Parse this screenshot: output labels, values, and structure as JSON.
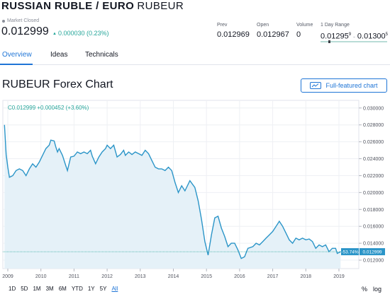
{
  "header": {
    "name": "RUSSIAN RUBLE / EURO",
    "ticker": "RUBEUR",
    "status": "Market Closed",
    "price": "0.012999",
    "change": "0.000030 (0.23%)",
    "change_color": "#26a69a"
  },
  "stats": {
    "prev": {
      "label": "Prev",
      "value": "0.012969"
    },
    "open": {
      "label": "Open",
      "value": "0.012967"
    },
    "volume": {
      "label": "Volume",
      "value": "0"
    },
    "range": {
      "label": "1 Day Range",
      "low": "0.01295",
      "low_sup": "9",
      "high": "0.01300",
      "high_sup": "5",
      "position": 0.12
    }
  },
  "tabs": [
    {
      "label": "Overview",
      "active": true
    },
    {
      "label": "Ideas",
      "active": false
    },
    {
      "label": "Technicals",
      "active": false
    }
  ],
  "chart_section": {
    "title": "RUBEUR Forex Chart",
    "full_button": "Full-featured chart",
    "legend": "C0.012999 +0.000452 (+3.60%)",
    "price_tag_pct": "-53.74%",
    "price_tag_val": "0.012999"
  },
  "periods": [
    {
      "label": "1D",
      "active": false
    },
    {
      "label": "5D",
      "active": false
    },
    {
      "label": "1M",
      "active": false
    },
    {
      "label": "3M",
      "active": false
    },
    {
      "label": "6M",
      "active": false
    },
    {
      "label": "YTD",
      "active": false
    },
    {
      "label": "1Y",
      "active": false
    },
    {
      "label": "5Y",
      "active": false
    },
    {
      "label": "All",
      "active": true
    }
  ],
  "scale": {
    "percent": "%",
    "log": "log"
  },
  "colors": {
    "accent": "#1f75d6",
    "line": "#2b95c8",
    "fill": "#e5f1f8"
  },
  "chart_data": {
    "type": "area",
    "xlabel": "",
    "ylabel": "",
    "x_ticks": [
      "2009",
      "2010",
      "2011",
      "2012",
      "2013",
      "2014",
      "2015",
      "2016",
      "2017",
      "2018",
      "2019"
    ],
    "y_ticks": [
      "0.012000",
      "0.014000",
      "0.016000",
      "0.018000",
      "0.020000",
      "0.022000",
      "0.024000",
      "0.026000",
      "0.028000",
      "0.030000"
    ],
    "xlim": [
      2008.85,
      2019.6
    ],
    "ylim": [
      0.011,
      0.0304
    ],
    "grid": true,
    "series": [
      {
        "values": [
          [
            2008.9,
            0.028
          ],
          [
            2008.95,
            0.0245
          ],
          [
            2009.0,
            0.023
          ],
          [
            2009.05,
            0.0218
          ],
          [
            2009.15,
            0.022
          ],
          [
            2009.25,
            0.0226
          ],
          [
            2009.35,
            0.0228
          ],
          [
            2009.45,
            0.0226
          ],
          [
            2009.55,
            0.022
          ],
          [
            2009.65,
            0.0228
          ],
          [
            2009.75,
            0.0234
          ],
          [
            2009.85,
            0.023
          ],
          [
            2009.95,
            0.0236
          ],
          [
            2010.05,
            0.0244
          ],
          [
            2010.15,
            0.0252
          ],
          [
            2010.25,
            0.0256
          ],
          [
            2010.3,
            0.0262
          ],
          [
            2010.4,
            0.0261
          ],
          [
            2010.45,
            0.0254
          ],
          [
            2010.5,
            0.0248
          ],
          [
            2010.55,
            0.0252
          ],
          [
            2010.65,
            0.0244
          ],
          [
            2010.75,
            0.0232
          ],
          [
            2010.8,
            0.0226
          ],
          [
            2010.9,
            0.0242
          ],
          [
            2011.0,
            0.0243
          ],
          [
            2011.1,
            0.0248
          ],
          [
            2011.2,
            0.0246
          ],
          [
            2011.3,
            0.0248
          ],
          [
            2011.4,
            0.0246
          ],
          [
            2011.5,
            0.025
          ],
          [
            2011.55,
            0.0243
          ],
          [
            2011.65,
            0.0234
          ],
          [
            2011.75,
            0.0242
          ],
          [
            2011.85,
            0.0248
          ],
          [
            2011.95,
            0.0252
          ],
          [
            2012.0,
            0.0256
          ],
          [
            2012.1,
            0.0252
          ],
          [
            2012.2,
            0.0256
          ],
          [
            2012.3,
            0.0242
          ],
          [
            2012.4,
            0.0245
          ],
          [
            2012.5,
            0.025
          ],
          [
            2012.55,
            0.0244
          ],
          [
            2012.65,
            0.0248
          ],
          [
            2012.75,
            0.0245
          ],
          [
            2012.85,
            0.0248
          ],
          [
            2012.95,
            0.0246
          ],
          [
            2013.05,
            0.0244
          ],
          [
            2013.15,
            0.025
          ],
          [
            2013.25,
            0.0246
          ],
          [
            2013.35,
            0.0238
          ],
          [
            2013.45,
            0.023
          ],
          [
            2013.55,
            0.0228
          ],
          [
            2013.65,
            0.0228
          ],
          [
            2013.75,
            0.0226
          ],
          [
            2013.85,
            0.023
          ],
          [
            2013.95,
            0.0226
          ],
          [
            2014.05,
            0.0212
          ],
          [
            2014.15,
            0.02
          ],
          [
            2014.25,
            0.0208
          ],
          [
            2014.35,
            0.0202
          ],
          [
            2014.5,
            0.0214
          ],
          [
            2014.65,
            0.0206
          ],
          [
            2014.75,
            0.019
          ],
          [
            2014.85,
            0.0168
          ],
          [
            2014.95,
            0.0142
          ],
          [
            2015.05,
            0.0126
          ],
          [
            2015.15,
            0.015
          ],
          [
            2015.25,
            0.017
          ],
          [
            2015.35,
            0.0172
          ],
          [
            2015.45,
            0.0158
          ],
          [
            2015.55,
            0.0148
          ],
          [
            2015.65,
            0.0136
          ],
          [
            2015.75,
            0.014
          ],
          [
            2015.85,
            0.014
          ],
          [
            2015.95,
            0.0132
          ],
          [
            2016.05,
            0.0122
          ],
          [
            2016.15,
            0.0124
          ],
          [
            2016.25,
            0.0134
          ],
          [
            2016.4,
            0.0136
          ],
          [
            2016.5,
            0.014
          ],
          [
            2016.6,
            0.0138
          ],
          [
            2016.7,
            0.0142
          ],
          [
            2016.8,
            0.0146
          ],
          [
            2016.9,
            0.015
          ],
          [
            2017.0,
            0.0154
          ],
          [
            2017.1,
            0.016
          ],
          [
            2017.2,
            0.0166
          ],
          [
            2017.3,
            0.016
          ],
          [
            2017.4,
            0.0152
          ],
          [
            2017.5,
            0.0144
          ],
          [
            2017.6,
            0.014
          ],
          [
            2017.7,
            0.0146
          ],
          [
            2017.8,
            0.0144
          ],
          [
            2017.9,
            0.0146
          ],
          [
            2018.0,
            0.0144
          ],
          [
            2018.1,
            0.0145
          ],
          [
            2018.2,
            0.0142
          ],
          [
            2018.3,
            0.0134
          ],
          [
            2018.4,
            0.0138
          ],
          [
            2018.5,
            0.0136
          ],
          [
            2018.6,
            0.0138
          ],
          [
            2018.7,
            0.013
          ],
          [
            2018.8,
            0.0134
          ],
          [
            2018.9,
            0.0134
          ],
          [
            2018.95,
            0.0128
          ],
          [
            2019.05,
            0.013
          ]
        ]
      }
    ]
  }
}
